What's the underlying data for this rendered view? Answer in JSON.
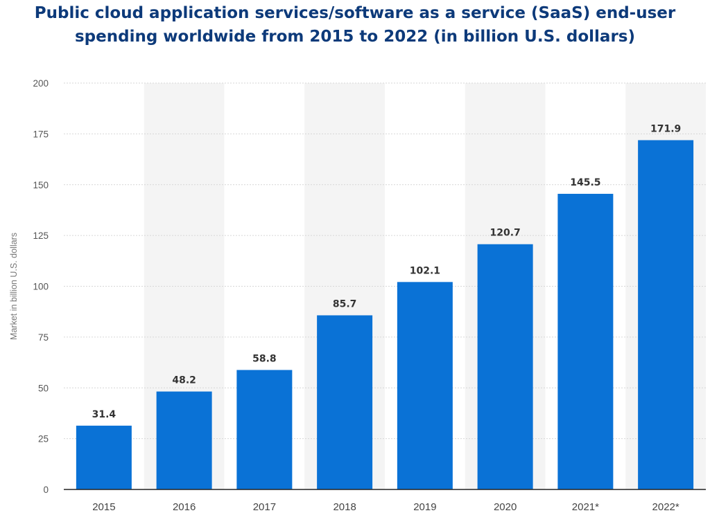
{
  "chart_data": {
    "type": "bar",
    "title_lines": [
      "Public cloud application services/software as a service (SaaS) end-user",
      "spending worldwide from 2015 to 2022 (in billion U.S. dollars)"
    ],
    "xlabel": "",
    "ylabel": "Market in billion U.S. dollars",
    "categories": [
      "2015",
      "2016",
      "2017",
      "2018",
      "2019",
      "2020",
      "2021*",
      "2022*"
    ],
    "values": [
      31.4,
      48.2,
      58.8,
      85.7,
      102.1,
      120.7,
      145.5,
      171.9
    ],
    "value_labels": [
      "31.4",
      "48.2",
      "58.8",
      "85.7",
      "102.1",
      "120.7",
      "145.5",
      "171.9"
    ],
    "ylim": [
      0,
      200
    ],
    "yticks": [
      0,
      25,
      50,
      75,
      100,
      125,
      150,
      175,
      200
    ],
    "grid": true,
    "legend": "none",
    "colors": {
      "bar": "#0a72d6",
      "title": "#0d3a7a",
      "grid": "#d6d6d6",
      "band": "#f4f4f4",
      "axis": "#222222"
    }
  }
}
